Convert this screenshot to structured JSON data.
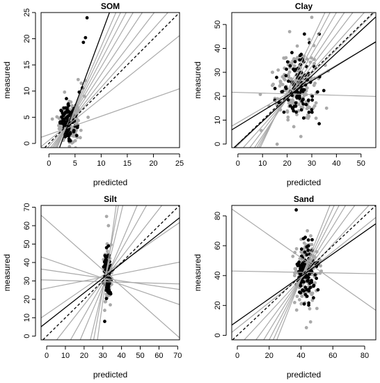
{
  "chart_data": [
    {
      "type": "scatter",
      "title": "SOM",
      "xlabel": "predicted",
      "ylabel": "measured",
      "xlim": [
        -1.5,
        25
      ],
      "ylim": [
        -0.8,
        25
      ],
      "xticks": [
        0,
        5,
        10,
        15,
        20,
        25
      ],
      "yticks": [
        0,
        5,
        10,
        15,
        20,
        25
      ],
      "gray_color": "#a9a9a9",
      "black_color": "#000000",
      "center": [
        3.8,
        4.0
      ],
      "spread": [
        0.9,
        1.8
      ],
      "extra_black_points": [
        [
          7.3,
          24.0
        ],
        [
          7.0,
          20.2
        ],
        [
          6.6,
          19.3
        ],
        [
          6.4,
          10.6
        ],
        [
          5.8,
          9.8
        ]
      ],
      "extra_gray_points": [
        [
          7.0,
          12.0
        ],
        [
          6.2,
          11.5
        ],
        [
          5.6,
          12.2
        ],
        [
          6.8,
          9.0
        ],
        [
          3.0,
          9.8
        ],
        [
          7.5,
          5.0
        ]
      ],
      "lines": [
        {
          "style": "solid",
          "color": "#000000",
          "intercept": -6.3,
          "slope": 2.7
        },
        {
          "style": "dashed",
          "color": "#000000",
          "intercept": 0,
          "slope": 1
        },
        {
          "style": "solid",
          "color": "#a9a9a9",
          "intercept": 1.7,
          "slope": 0.35
        },
        {
          "style": "solid",
          "color": "#a9a9a9",
          "intercept": 0.6,
          "slope": 0.8
        },
        {
          "style": "solid",
          "color": "#a9a9a9",
          "intercept": -0.5,
          "slope": 1.12
        },
        {
          "style": "solid",
          "color": "#a9a9a9",
          "intercept": -1.2,
          "slope": 1.3
        },
        {
          "style": "solid",
          "color": "#a9a9a9",
          "intercept": -1.8,
          "slope": 1.5
        },
        {
          "style": "solid",
          "color": "#a9a9a9",
          "intercept": -2.4,
          "slope": 1.7
        },
        {
          "style": "solid",
          "color": "#a9a9a9",
          "intercept": -3.1,
          "slope": 1.9
        },
        {
          "style": "solid",
          "color": "#a9a9a9",
          "intercept": -3.8,
          "slope": 2.1
        },
        {
          "style": "solid",
          "color": "#a9a9a9",
          "intercept": -4.5,
          "slope": 2.3
        }
      ]
    },
    {
      "type": "scatter",
      "title": "Clay",
      "xlabel": "predicted",
      "ylabel": "measured",
      "xlim": [
        -2.5,
        56
      ],
      "ylim": [
        -1.5,
        55
      ],
      "xticks": [
        0,
        10,
        20,
        30,
        40,
        50
      ],
      "yticks": [
        0,
        10,
        20,
        30,
        40,
        50
      ],
      "gray_color": "#a9a9a9",
      "black_color": "#000000",
      "center": [
        24,
        24
      ],
      "spread": [
        4.5,
        8.0
      ],
      "extra_black_points": [
        [
          33.0,
          8.5
        ],
        [
          27.0,
          46.0
        ],
        [
          33.0,
          46.0
        ]
      ],
      "extra_gray_points": [
        [
          30.0,
          53.0
        ],
        [
          36.0,
          15.0
        ],
        [
          14.0,
          30.0
        ],
        [
          21.0,
          47.0
        ]
      ],
      "lines": [
        {
          "style": "solid",
          "color": "#000000",
          "intercept": 0,
          "slope": 0.95
        },
        {
          "style": "solid",
          "color": "#000000",
          "intercept": 7.5,
          "slope": 0.63
        },
        {
          "style": "dashed",
          "color": "#000000",
          "intercept": 0,
          "slope": 1
        },
        {
          "style": "solid",
          "color": "#a9a9a9",
          "intercept": 21.6,
          "slope": -0.03
        },
        {
          "style": "solid",
          "color": "#a9a9a9",
          "intercept": 9.0,
          "slope": 0.6
        },
        {
          "style": "solid",
          "color": "#a9a9a9",
          "intercept": -0.5,
          "slope": 1.0
        },
        {
          "style": "solid",
          "color": "#a9a9a9",
          "intercept": -4.0,
          "slope": 1.15
        },
        {
          "style": "solid",
          "color": "#a9a9a9",
          "intercept": -8.0,
          "slope": 1.35
        },
        {
          "style": "solid",
          "color": "#a9a9a9",
          "intercept": -12.0,
          "slope": 1.55
        },
        {
          "style": "solid",
          "color": "#a9a9a9",
          "intercept": -15.0,
          "slope": 1.75
        },
        {
          "style": "solid",
          "color": "#a9a9a9",
          "intercept": -18.0,
          "slope": 1.95
        },
        {
          "style": "solid",
          "color": "#a9a9a9",
          "intercept": -21.0,
          "slope": 2.15
        }
      ]
    },
    {
      "type": "scatter",
      "title": "Silt",
      "xlabel": "predicted",
      "ylabel": "measured",
      "xlim": [
        -3,
        71
      ],
      "ylim": [
        -2,
        71
      ],
      "xticks": [
        0,
        10,
        20,
        30,
        40,
        50,
        60,
        70
      ],
      "yticks": [
        0,
        10,
        20,
        30,
        40,
        50,
        60,
        70
      ],
      "gray_color": "#a9a9a9",
      "black_color": "#000000",
      "center": [
        32.5,
        33
      ],
      "spread": [
        1.0,
        6.5
      ],
      "extra_black_points": [
        [
          31.0,
          8.0
        ],
        [
          33.0,
          49.0
        ],
        [
          32.0,
          48.0
        ]
      ],
      "extra_gray_points": [
        [
          32.0,
          65.0
        ],
        [
          33.0,
          60.0
        ],
        [
          31.0,
          14.0
        ],
        [
          34.0,
          17.0
        ]
      ],
      "lines": [
        {
          "style": "solid",
          "color": "#000000",
          "intercept": 7.5,
          "slope": 0.8
        },
        {
          "style": "dashed",
          "color": "#000000",
          "intercept": 0,
          "slope": 1
        },
        {
          "style": "solid",
          "color": "#a9a9a9",
          "intercept": 63.0,
          "slope": -0.9
        },
        {
          "style": "solid",
          "color": "#a9a9a9",
          "intercept": 12.0,
          "slope": 0.7
        },
        {
          "style": "solid",
          "color": "#a9a9a9",
          "intercept": 26.0,
          "slope": 0.2
        },
        {
          "style": "solid",
          "color": "#a9a9a9",
          "intercept": 30.5,
          "slope": -0.03
        },
        {
          "style": "solid",
          "color": "#a9a9a9",
          "intercept": 36.0,
          "slope": -0.15
        },
        {
          "style": "solid",
          "color": "#a9a9a9",
          "intercept": 42.0,
          "slope": -0.35
        },
        {
          "style": "solid",
          "color": "#a9a9a9",
          "intercept": -9.0,
          "slope": 1.3
        },
        {
          "style": "solid",
          "color": "#a9a9a9",
          "intercept": -25.0,
          "slope": 1.8
        },
        {
          "style": "solid",
          "color": "#a9a9a9",
          "intercept": -45.0,
          "slope": 2.4
        },
        {
          "style": "solid",
          "color": "#a9a9a9",
          "intercept": -100.0,
          "slope": 4.2
        },
        {
          "style": "solid",
          "color": "#a9a9a9",
          "intercept": -140.0,
          "slope": 5.5
        },
        {
          "style": "solid",
          "color": "#a9a9a9",
          "intercept": -200.0,
          "slope": 7.3
        }
      ]
    },
    {
      "type": "scatter",
      "title": "Sand",
      "xlabel": "predicted",
      "ylabel": "measured",
      "xlim": [
        -3.5,
        87
      ],
      "ylim": [
        -3,
        87
      ],
      "xticks": [
        0,
        20,
        40,
        60,
        80
      ],
      "yticks": [
        0,
        20,
        40,
        60,
        80
      ],
      "gray_color": "#a9a9a9",
      "black_color": "#000000",
      "center": [
        43,
        42
      ],
      "spread": [
        3.5,
        11.0
      ],
      "extra_black_points": [
        [
          37.0,
          84.0
        ],
        [
          42.0,
          21.0
        ],
        [
          47.0,
          64.0
        ]
      ],
      "extra_gray_points": [
        [
          44.0,
          70.0
        ],
        [
          46.0,
          9.0
        ],
        [
          50.0,
          18.0
        ],
        [
          36.0,
          22.0
        ]
      ],
      "lines": [
        {
          "style": "solid",
          "color": "#000000",
          "intercept": 9.5,
          "slope": 0.75
        },
        {
          "style": "dashed",
          "color": "#000000",
          "intercept": 0,
          "slope": 1
        },
        {
          "style": "solid",
          "color": "#a9a9a9",
          "intercept": 82.0,
          "slope": -0.75
        },
        {
          "style": "solid",
          "color": "#a9a9a9",
          "intercept": 43.0,
          "slope": -0.02
        },
        {
          "style": "solid",
          "color": "#a9a9a9",
          "intercept": 5.0,
          "slope": 0.85
        },
        {
          "style": "solid",
          "color": "#a9a9a9",
          "intercept": -8.0,
          "slope": 1.15
        },
        {
          "style": "solid",
          "color": "#a9a9a9",
          "intercept": -20.0,
          "slope": 1.45
        },
        {
          "style": "solid",
          "color": "#a9a9a9",
          "intercept": -32.0,
          "slope": 1.75
        },
        {
          "style": "solid",
          "color": "#a9a9a9",
          "intercept": -44.0,
          "slope": 2.05
        },
        {
          "style": "solid",
          "color": "#a9a9a9",
          "intercept": -56.0,
          "slope": 2.35
        },
        {
          "style": "solid",
          "color": "#a9a9a9",
          "intercept": -70.0,
          "slope": 2.7
        }
      ]
    }
  ]
}
